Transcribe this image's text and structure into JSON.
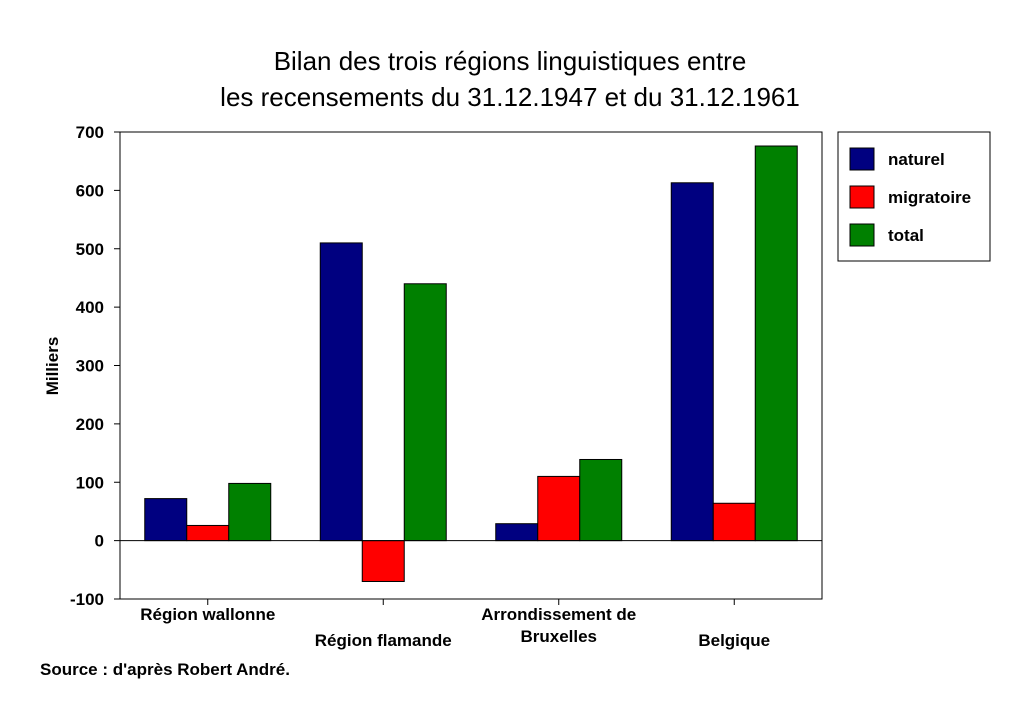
{
  "chart_data": {
    "type": "bar",
    "title": [
      "Bilan des trois régions linguistiques entre",
      "les recensements du 31.12.1947 et du 31.12.1961"
    ],
    "ylabel": "Milliers",
    "xlabel": "",
    "categories": [
      [
        "Région wallonne"
      ],
      [
        "Région flamande"
      ],
      [
        "Arrondissement de",
        "Bruxelles"
      ],
      [
        "Belgique"
      ]
    ],
    "series": [
      {
        "name": "naturel",
        "color": "#000080",
        "values": [
          72,
          510,
          29,
          613
        ]
      },
      {
        "name": "migratoire",
        "color": "#ff0000",
        "values": [
          26,
          -70,
          110,
          64
        ]
      },
      {
        "name": "total",
        "color": "#008000",
        "values": [
          98,
          440,
          139,
          676
        ]
      }
    ],
    "ylim": [
      -100,
      700
    ],
    "yticks": [
      -100,
      0,
      100,
      200,
      300,
      400,
      500,
      600,
      700
    ],
    "grid": false,
    "legend_position": "top-right",
    "source": "Source : d'après Robert André."
  }
}
